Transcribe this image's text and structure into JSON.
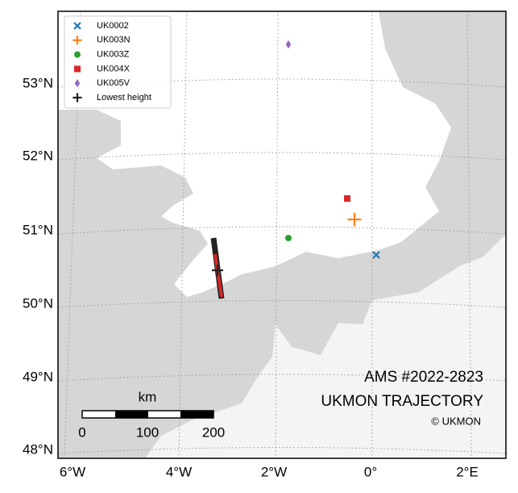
{
  "legend": [
    {
      "name": "UK0002",
      "color": "#1f77b4",
      "marker": "x"
    },
    {
      "name": "UK003N",
      "color": "#ff7f0e",
      "marker": "plus"
    },
    {
      "name": "UK003Z",
      "color": "#2ca02c",
      "marker": "circle"
    },
    {
      "name": "UK004X",
      "color": "#d62728",
      "marker": "square"
    },
    {
      "name": "UK005V",
      "color": "#9467bd",
      "marker": "diamond"
    },
    {
      "name": "Lowest height",
      "color": "#222222",
      "marker": "plus"
    }
  ],
  "axes": {
    "y_labels": [
      "53°N",
      "52°N",
      "51°N",
      "50°N",
      "49°N",
      "48°N"
    ],
    "x_labels": [
      "6°W",
      "4°W",
      "2°W",
      "0°",
      "2°E"
    ]
  },
  "scale_bar": {
    "unit": "km",
    "labels": [
      "0",
      "100",
      "200"
    ]
  },
  "annotations": {
    "title": "AMS #2022-2823",
    "subtitle": "UKMON TRAJECTORY",
    "credit": "© UKMON"
  }
}
